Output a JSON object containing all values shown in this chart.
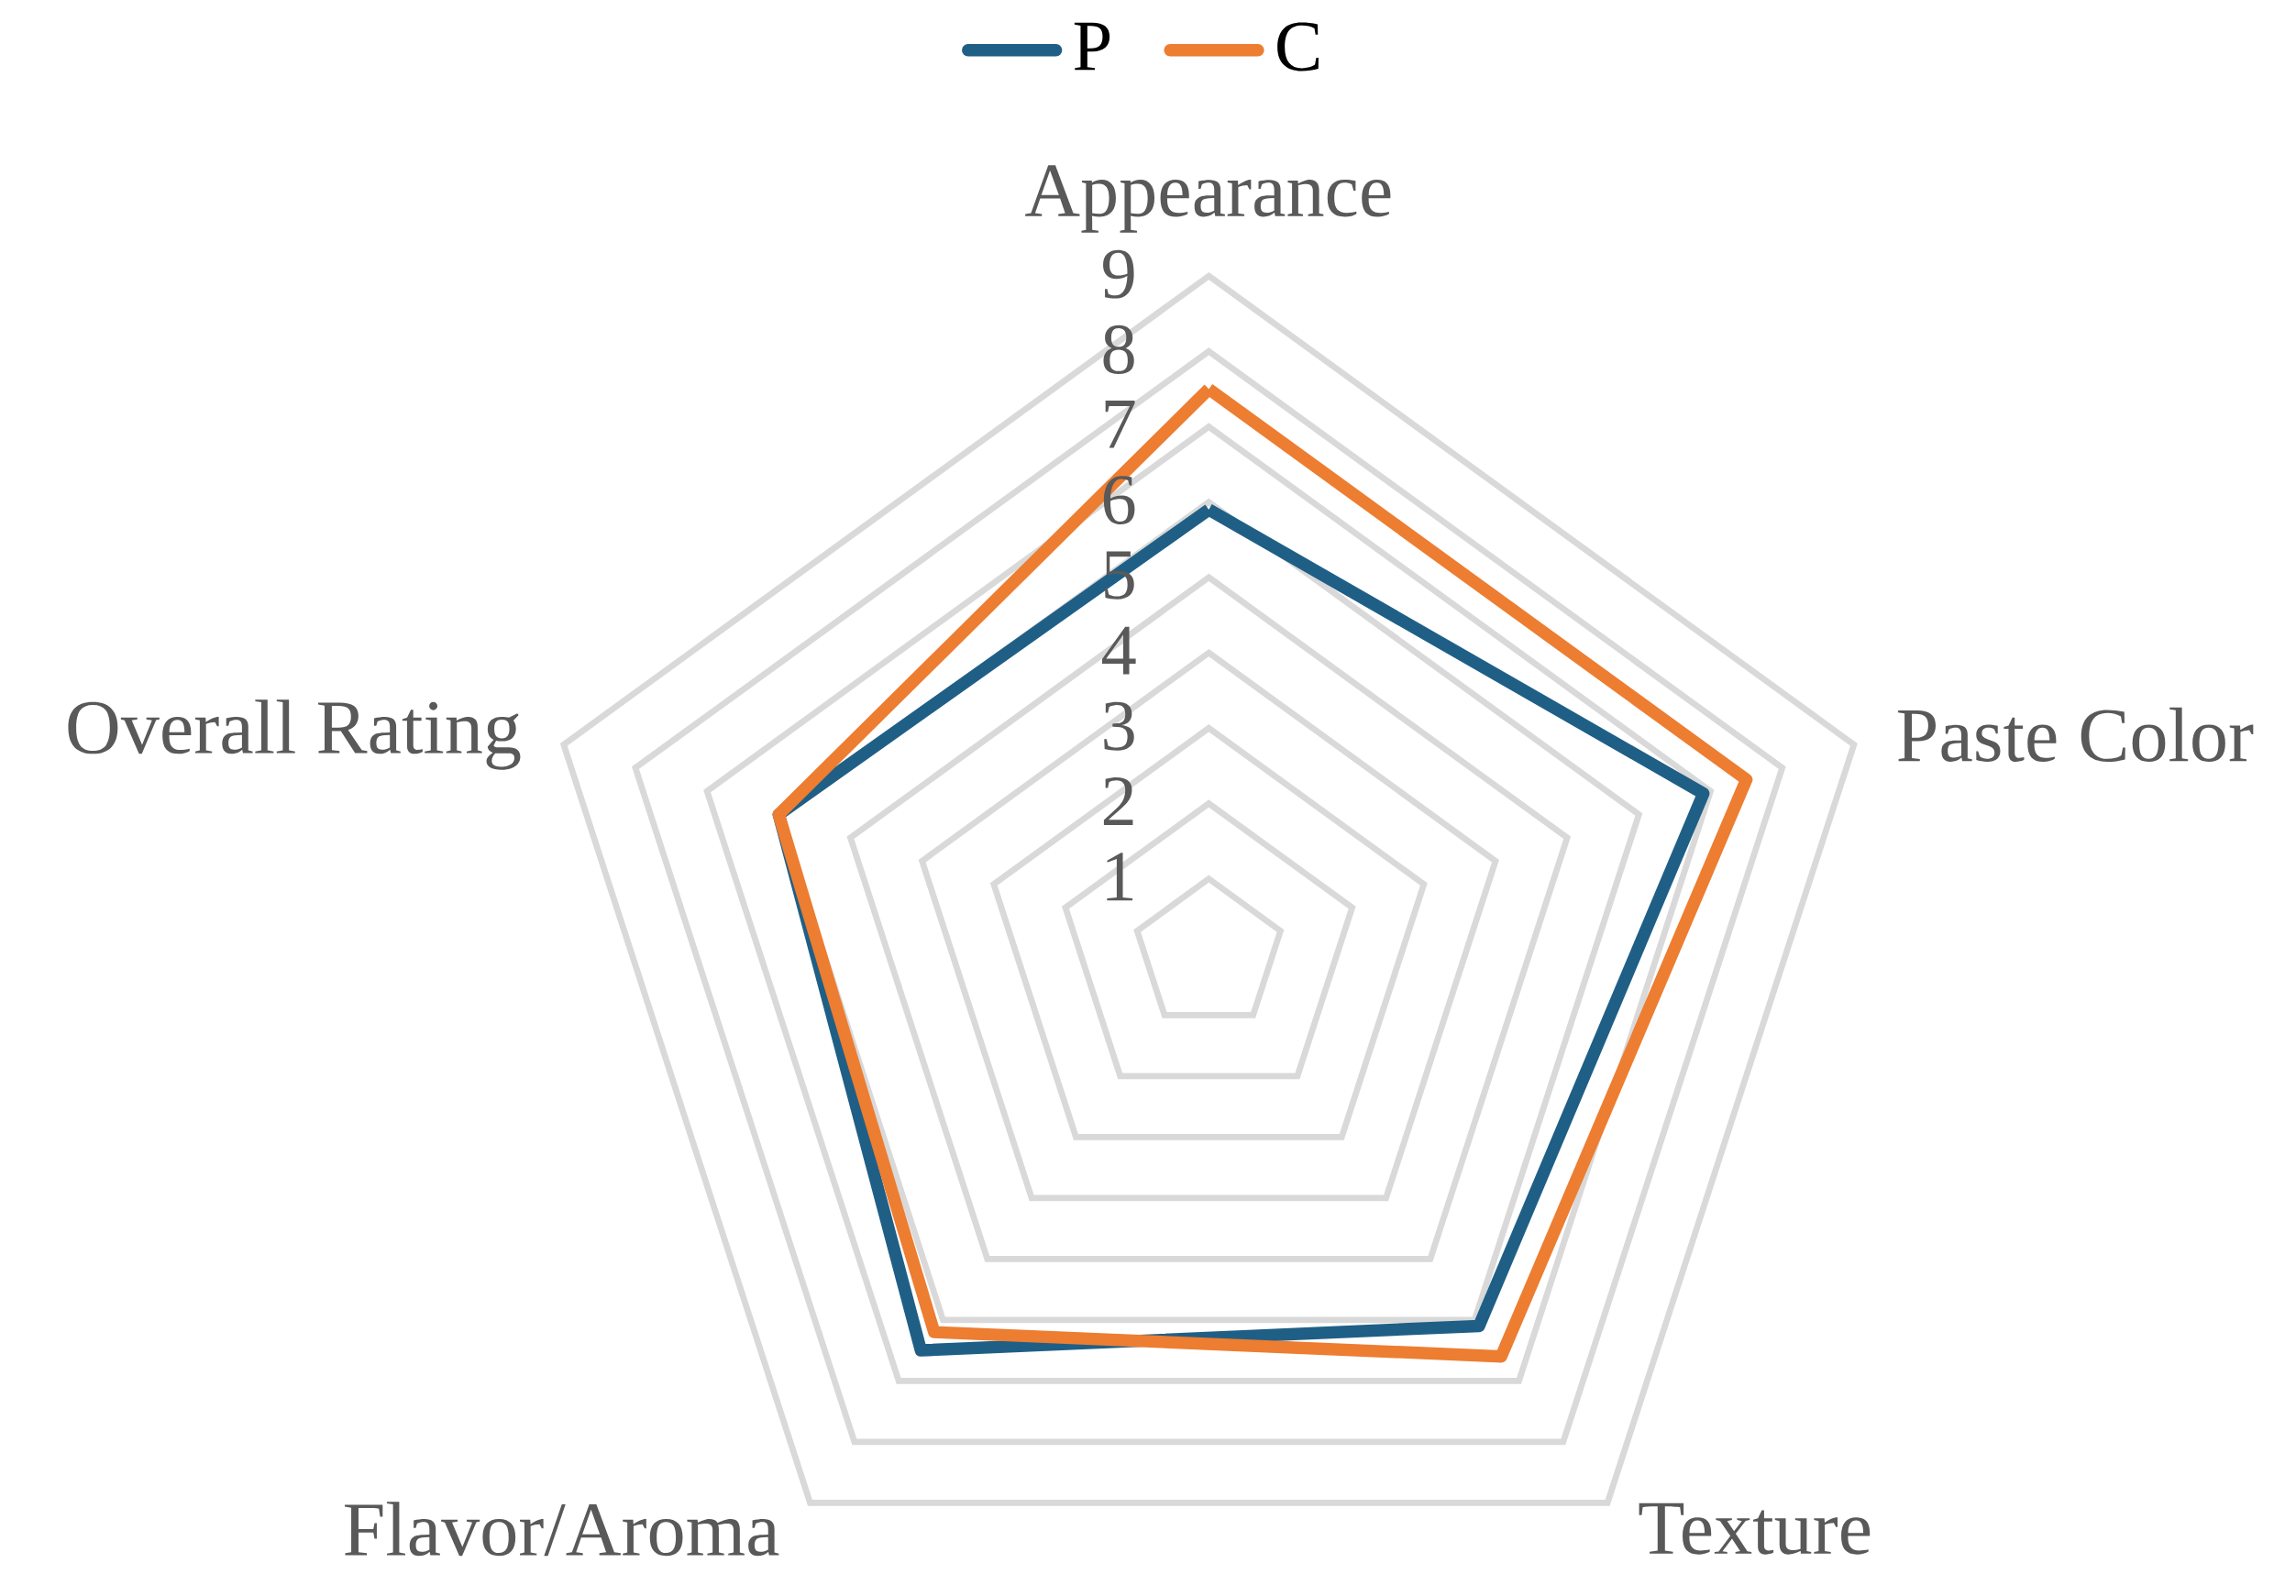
{
  "chart_data": {
    "type": "radar",
    "categories": [
      "Appearance",
      "Paste Color",
      "Texture",
      "Flavor/Aroma",
      "Overall Rating"
    ],
    "series": [
      {
        "name": "P",
        "color": "#1f5f86",
        "values": [
          5.9,
          6.9,
          6.1,
          6.5,
          6.0
        ]
      },
      {
        "name": "C",
        "color": "#ed7d31",
        "values": [
          7.5,
          7.5,
          6.6,
          6.2,
          6.0
        ]
      }
    ],
    "ylim": [
      0,
      9
    ],
    "yticks": [
      1,
      2,
      3,
      4,
      5,
      6,
      7,
      8,
      9
    ],
    "grid": true,
    "legend": "top"
  }
}
